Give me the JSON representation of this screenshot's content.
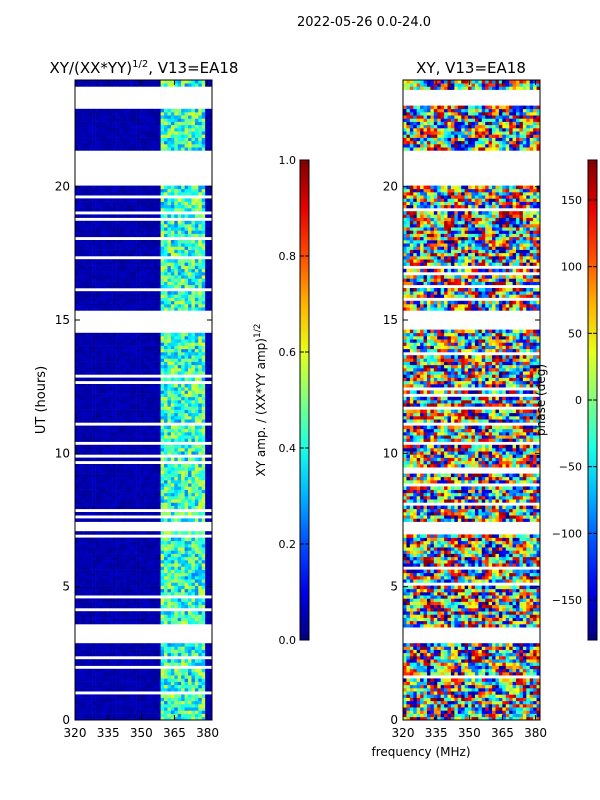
{
  "suptitle": "2022-05-26 0.0-24.0",
  "shared_xlabel": "frequency (MHz)",
  "chart_data": [
    {
      "type": "heatmap",
      "title": "XY/(XX*YY)^{1/2}, V13=EA18",
      "title_main": "XY/(XX*YY)",
      "title_sup": "1/2",
      "title_tail": ", V13=EA18",
      "xlabel": "",
      "ylabel": "UT (hours)",
      "xlim": [
        320,
        382
      ],
      "ylim": [
        0,
        24
      ],
      "xticks": [
        320,
        335,
        350,
        365,
        380
      ],
      "yticks": [
        0,
        5,
        10,
        15,
        20
      ],
      "colorbar": {
        "label": "XY amp. / (XX*YY amp)^{1/2}",
        "label_main": "XY amp. / (XX*YY amp)",
        "label_sup": "1/2",
        "range": [
          0.0,
          1.0
        ],
        "ticks": [
          "0.0",
          "0.2",
          "0.4",
          "0.6",
          "0.8",
          "1.0"
        ],
        "colormap": "jet"
      },
      "rfi_band_mhz": [
        359,
        379
      ],
      "flagged_hours": [
        [
          2.85,
          3.5
        ],
        [
          7.05,
          7.4
        ],
        [
          14.65,
          15.35
        ],
        [
          20.05,
          21.4
        ],
        [
          23.05,
          23.65
        ]
      ]
    },
    {
      "type": "heatmap",
      "title": "XY, V13=EA18",
      "xlabel": "",
      "ylabel": "",
      "xlim": [
        320,
        382
      ],
      "ylim": [
        0,
        24
      ],
      "xticks": [
        320,
        335,
        350,
        365,
        380
      ],
      "yticks": [
        0,
        5,
        10,
        15,
        20
      ],
      "colorbar": {
        "label": "phase (deg)",
        "range": [
          -180,
          180
        ],
        "ticks": [
          "−150",
          "−100",
          "−50",
          "0",
          "50",
          "100",
          "150"
        ],
        "tick_values": [
          -150,
          -100,
          -50,
          0,
          50,
          100,
          150
        ],
        "colormap": "jet"
      },
      "flagged_hours": [
        [
          2.85,
          3.5
        ],
        [
          7.05,
          7.4
        ],
        [
          14.65,
          15.35
        ],
        [
          20.05,
          21.4
        ],
        [
          23.05,
          23.65
        ]
      ]
    }
  ]
}
